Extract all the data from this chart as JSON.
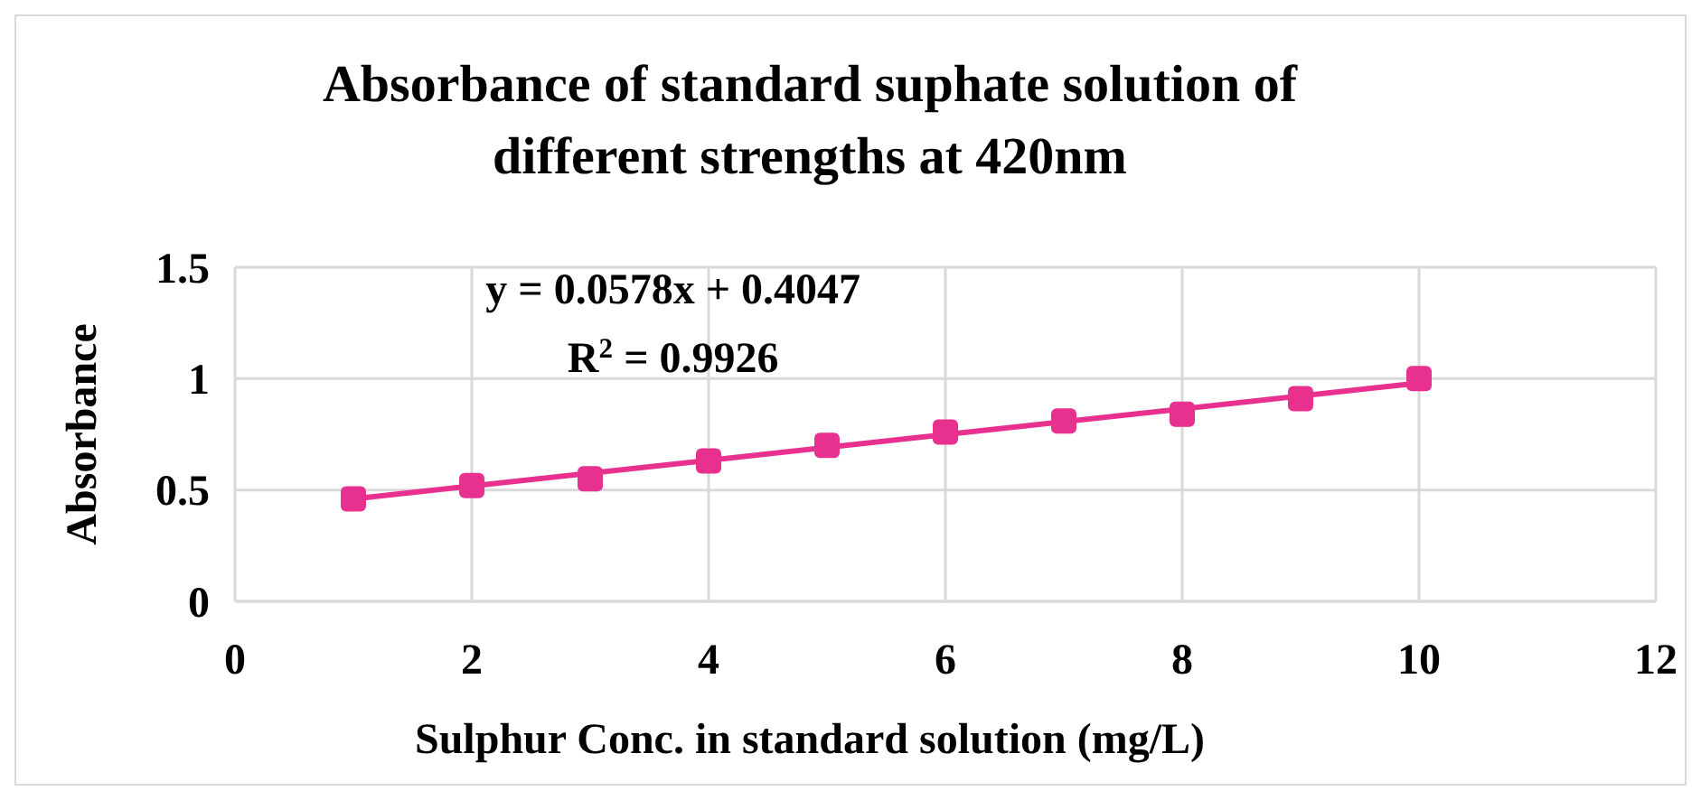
{
  "chart_data": {
    "type": "scatter",
    "title": "Absorbance of standard suphate solution of different strengths at 420nm",
    "xlabel": "Sulphur Conc. in standard solution (mg/L)",
    "ylabel": "Absorbance",
    "x": [
      1,
      2,
      3,
      4,
      5,
      6,
      7,
      8,
      9,
      10
    ],
    "series": [
      {
        "color": "#e8318f",
        "marker": "square",
        "values": [
          0.46,
          0.52,
          0.55,
          0.63,
          0.7,
          0.76,
          0.81,
          0.84,
          0.91,
          1.0
        ]
      },
      {
        "type": "line",
        "color": "#e8318f",
        "marker": "none",
        "x": [
          1,
          10
        ],
        "values": [
          0.46,
          0.98
        ]
      }
    ],
    "annotations": [
      "y = 0.0578x + 0.4047",
      "R$^{2}$ = 0.9926"
    ],
    "xlim": [
      0,
      12
    ],
    "xticks": [
      0,
      2,
      4,
      6,
      8,
      10,
      12
    ],
    "ylim": [
      0,
      1.5
    ],
    "yticks": [
      0,
      0.5,
      1,
      1.5
    ],
    "grid": true
  }
}
